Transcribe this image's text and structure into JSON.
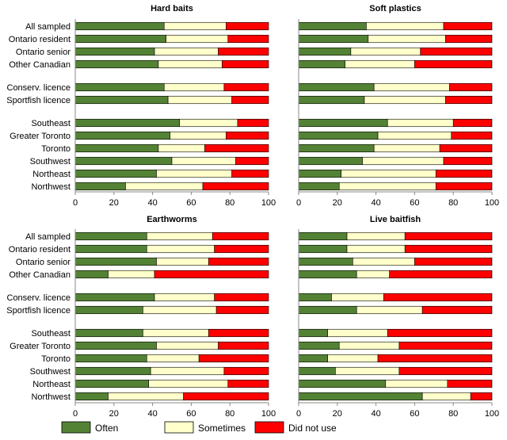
{
  "colors": {
    "often": "#548235",
    "sometimes": "#FFFFCC",
    "did_not_use": "#FF0000"
  },
  "legend": {
    "often": "Often",
    "sometimes": "Sometimes",
    "did_not_use": "Did not use"
  },
  "chart_data": [
    {
      "type": "bar",
      "orientation": "horizontal",
      "stacked": true,
      "title": "Hard baits",
      "categories": [
        "All sampled",
        "Ontario resident",
        "Ontario senior",
        "Other Canadian",
        "Conserv. licence",
        "Sportfish licence",
        "Southeast",
        "Greater Toronto",
        "Toronto",
        "Southwest",
        "Northeast",
        "Northwest"
      ],
      "series": [
        {
          "name": "Often",
          "values": [
            46,
            47,
            41,
            43,
            46,
            48,
            54,
            49,
            43,
            50,
            42,
            26
          ]
        },
        {
          "name": "Sometimes",
          "values": [
            32,
            32,
            33,
            33,
            31,
            33,
            30,
            29,
            24,
            33,
            39,
            40
          ]
        },
        {
          "name": "Did not use",
          "values": [
            22,
            21,
            26,
            24,
            23,
            19,
            16,
            22,
            33,
            17,
            19,
            34
          ]
        }
      ],
      "xlim": [
        0,
        100
      ],
      "xticks": [
        0,
        20,
        40,
        60,
        80,
        100
      ]
    },
    {
      "type": "bar",
      "orientation": "horizontal",
      "stacked": true,
      "title": "Soft plastics",
      "categories": [
        "All sampled",
        "Ontario resident",
        "Ontario senior",
        "Other Canadian",
        "Conserv. licence",
        "Sportfish licence",
        "Southeast",
        "Greater Toronto",
        "Toronto",
        "Southwest",
        "Northeast",
        "Northwest"
      ],
      "series": [
        {
          "name": "Often",
          "values": [
            35,
            36,
            27,
            24,
            39,
            34,
            46,
            41,
            39,
            33,
            22,
            21
          ]
        },
        {
          "name": "Sometimes",
          "values": [
            40,
            40,
            36,
            36,
            39,
            42,
            34,
            38,
            34,
            42,
            49,
            50
          ]
        },
        {
          "name": "Did not use",
          "values": [
            25,
            24,
            37,
            40,
            22,
            24,
            20,
            21,
            27,
            25,
            29,
            29
          ]
        }
      ],
      "xlim": [
        0,
        100
      ],
      "xticks": [
        0,
        20,
        40,
        60,
        80,
        100
      ]
    },
    {
      "type": "bar",
      "orientation": "horizontal",
      "stacked": true,
      "title": "Earthworms",
      "categories": [
        "All sampled",
        "Ontario resident",
        "Ontario senior",
        "Other Canadian",
        "Conserv. licence",
        "Sportfish licence",
        "Southeast",
        "Greater Toronto",
        "Toronto",
        "Southwest",
        "Northeast",
        "Northwest"
      ],
      "series": [
        {
          "name": "Often",
          "values": [
            37,
            37,
            42,
            17,
            41,
            35,
            35,
            42,
            37,
            39,
            38,
            17
          ]
        },
        {
          "name": "Sometimes",
          "values": [
            34,
            35,
            27,
            24,
            31,
            38,
            34,
            32,
            27,
            38,
            41,
            39
          ]
        },
        {
          "name": "Did not use",
          "values": [
            29,
            28,
            31,
            59,
            28,
            27,
            31,
            26,
            36,
            23,
            21,
            44
          ]
        }
      ],
      "xlim": [
        0,
        100
      ],
      "xticks": [
        0,
        20,
        40,
        60,
        80,
        100
      ]
    },
    {
      "type": "bar",
      "orientation": "horizontal",
      "stacked": true,
      "title": "Live baitfish",
      "categories": [
        "All sampled",
        "Ontario resident",
        "Ontario senior",
        "Other Canadian",
        "Conserv. licence",
        "Sportfish licence",
        "Southeast",
        "Greater Toronto",
        "Toronto",
        "Southwest",
        "Northeast",
        "Northwest"
      ],
      "series": [
        {
          "name": "Often",
          "values": [
            25,
            25,
            28,
            30,
            17,
            30,
            15,
            21,
            15,
            19,
            45,
            64
          ]
        },
        {
          "name": "Sometimes",
          "values": [
            30,
            30,
            32,
            17,
            27,
            34,
            31,
            31,
            26,
            33,
            32,
            25
          ]
        },
        {
          "name": "Did not use",
          "values": [
            45,
            45,
            40,
            53,
            56,
            36,
            54,
            48,
            59,
            48,
            23,
            11
          ]
        }
      ],
      "xlim": [
        0,
        100
      ],
      "xticks": [
        0,
        20,
        40,
        60,
        80,
        100
      ]
    }
  ]
}
